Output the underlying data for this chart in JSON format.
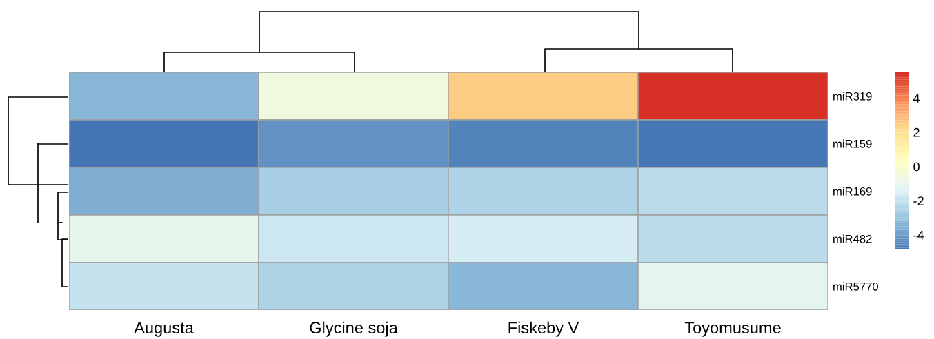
{
  "chart_data": {
    "type": "heatmap",
    "categories": [
      "Augusta",
      "Glycine soja",
      "Fiskeby V",
      "Toyomusume"
    ],
    "y_categories": [
      "miR319",
      "miR159",
      "miR169",
      "miR482",
      "miR5770"
    ],
    "cells": [
      [
        -3.3,
        -0.6,
        2.5,
        5.5
      ],
      [
        -4.85,
        -4.2,
        -4.5,
        -4.8
      ],
      [
        -3.5,
        -2.6,
        -2.5,
        -2.2
      ],
      [
        -1.0,
        -1.8,
        -1.6,
        -2.2
      ],
      [
        -2.0,
        -2.5,
        -3.3,
        -1.2
      ]
    ],
    "clim": [
      -4.85,
      5.5
    ],
    "cticks": [
      -4,
      -2,
      0,
      2,
      4
    ]
  }
}
